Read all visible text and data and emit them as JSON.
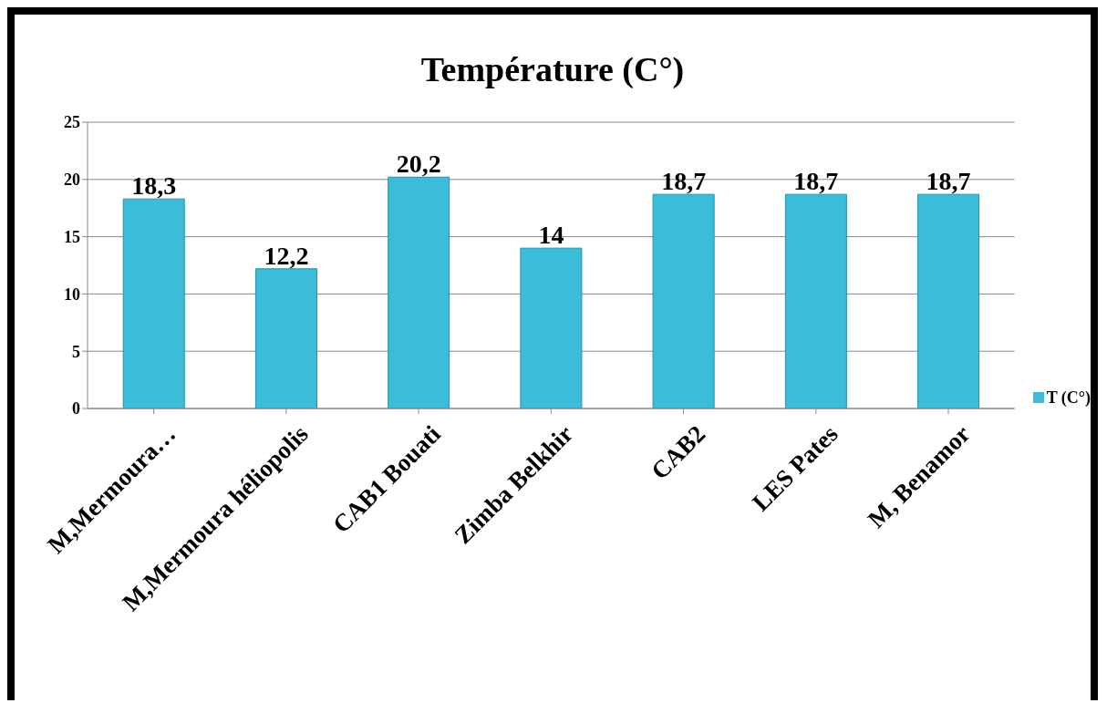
{
  "chart_data": {
    "type": "bar",
    "title": "Température (C°)",
    "categories": [
      "M,Mermoura…",
      "M,Mermoura héliopolis",
      "CAB1 Bouati",
      "Zimba Belkhir",
      "CAB2",
      "LES Pates",
      "M, Benamor"
    ],
    "series": [
      {
        "name": "T (C°)",
        "color": "#3bbcd9",
        "values": [
          18.3,
          12.2,
          20.2,
          14,
          18.7,
          18.7,
          18.7
        ],
        "value_labels": [
          "18,3",
          "12,2",
          "20,2",
          "14",
          "18,7",
          "18,7",
          "18,7"
        ]
      }
    ],
    "ylim": [
      0,
      25
    ],
    "yticks": [
      0,
      5,
      10,
      15,
      20,
      25
    ],
    "grid": "y",
    "legend": "right"
  }
}
